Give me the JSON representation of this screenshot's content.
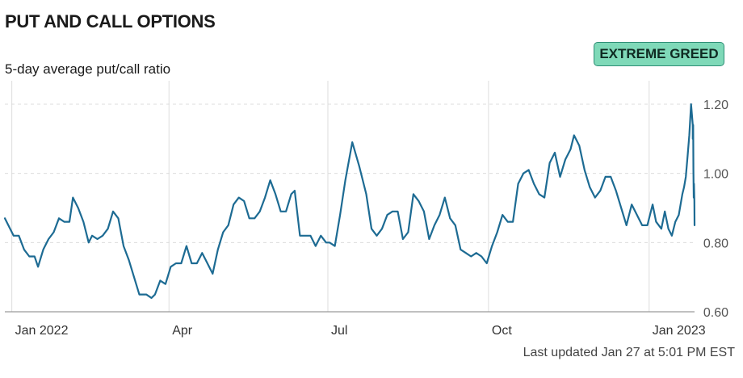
{
  "header": {
    "title": "PUT AND CALL OPTIONS",
    "subtitle": "5-day average put/call ratio",
    "badge": "EXTREME GREED",
    "updated": "Last updated Jan 27 at 5:01 PM EST"
  },
  "colors": {
    "line": "#1d6b93",
    "badge_bg": "#7fd9b8",
    "badge_border": "#2f8f76",
    "grid": "#dcdcdc",
    "baseline": "#9a9a9a"
  },
  "chart_data": {
    "type": "line",
    "title": "PUT AND CALL OPTIONS",
    "subtitle": "5-day average put/call ratio",
    "ylim": [
      0.6,
      1.25
    ],
    "yticks": [
      0.6,
      0.8,
      1.0,
      1.2
    ],
    "ytick_labels": [
      "0.60",
      "0.80",
      "1.00",
      "1.20"
    ],
    "xlim": [
      "2021-12-28",
      "2023-01-27"
    ],
    "xticks": [
      {
        "date": "2022-01-01",
        "label": "Jan 2022"
      },
      {
        "date": "2022-04-01",
        "label": "Apr"
      },
      {
        "date": "2022-07-01",
        "label": "Jul"
      },
      {
        "date": "2022-10-01",
        "label": "Oct"
      },
      {
        "date": "2023-01-01",
        "label": "Jan 2023"
      }
    ],
    "grid": "vertical at x ticks, dashed horizontal at y ticks",
    "series": [
      {
        "values": [
          [
            "2021-12-28",
            0.87
          ],
          [
            "2022-01-02",
            0.82
          ],
          [
            "2022-01-05",
            0.82
          ],
          [
            "2022-01-08",
            0.78
          ],
          [
            "2022-01-11",
            0.76
          ],
          [
            "2022-01-14",
            0.76
          ],
          [
            "2022-01-16",
            0.73
          ],
          [
            "2022-01-19",
            0.78
          ],
          [
            "2022-01-22",
            0.81
          ],
          [
            "2022-01-25",
            0.83
          ],
          [
            "2022-01-28",
            0.87
          ],
          [
            "2022-01-31",
            0.86
          ],
          [
            "2022-02-03",
            0.86
          ],
          [
            "2022-02-05",
            0.93
          ],
          [
            "2022-02-08",
            0.9
          ],
          [
            "2022-02-11",
            0.86
          ],
          [
            "2022-02-14",
            0.8
          ],
          [
            "2022-02-16",
            0.82
          ],
          [
            "2022-02-19",
            0.81
          ],
          [
            "2022-02-22",
            0.82
          ],
          [
            "2022-02-25",
            0.84
          ],
          [
            "2022-02-28",
            0.89
          ],
          [
            "2022-03-03",
            0.87
          ],
          [
            "2022-03-06",
            0.79
          ],
          [
            "2022-03-09",
            0.75
          ],
          [
            "2022-03-12",
            0.7
          ],
          [
            "2022-03-15",
            0.65
          ],
          [
            "2022-03-19",
            0.65
          ],
          [
            "2022-03-22",
            0.64
          ],
          [
            "2022-03-24",
            0.65
          ],
          [
            "2022-03-27",
            0.69
          ],
          [
            "2022-03-30",
            0.68
          ],
          [
            "2022-04-02",
            0.73
          ],
          [
            "2022-04-05",
            0.74
          ],
          [
            "2022-04-08",
            0.74
          ],
          [
            "2022-04-11",
            0.79
          ],
          [
            "2022-04-14",
            0.74
          ],
          [
            "2022-04-17",
            0.74
          ],
          [
            "2022-04-20",
            0.77
          ],
          [
            "2022-04-23",
            0.74
          ],
          [
            "2022-04-26",
            0.71
          ],
          [
            "2022-04-29",
            0.78
          ],
          [
            "2022-05-02",
            0.83
          ],
          [
            "2022-05-05",
            0.85
          ],
          [
            "2022-05-08",
            0.91
          ],
          [
            "2022-05-11",
            0.93
          ],
          [
            "2022-05-14",
            0.92
          ],
          [
            "2022-05-17",
            0.87
          ],
          [
            "2022-05-20",
            0.87
          ],
          [
            "2022-05-23",
            0.89
          ],
          [
            "2022-05-26",
            0.93
          ],
          [
            "2022-05-29",
            0.98
          ],
          [
            "2022-06-01",
            0.94
          ],
          [
            "2022-06-04",
            0.89
          ],
          [
            "2022-06-07",
            0.89
          ],
          [
            "2022-06-10",
            0.94
          ],
          [
            "2022-06-12",
            0.95
          ],
          [
            "2022-06-15",
            0.82
          ],
          [
            "2022-06-18",
            0.82
          ],
          [
            "2022-06-21",
            0.82
          ],
          [
            "2022-06-24",
            0.79
          ],
          [
            "2022-06-27",
            0.82
          ],
          [
            "2022-06-30",
            0.8
          ],
          [
            "2022-07-02",
            0.8
          ],
          [
            "2022-07-05",
            0.79
          ],
          [
            "2022-07-08",
            0.88
          ],
          [
            "2022-07-11",
            0.98
          ],
          [
            "2022-07-15",
            1.09
          ],
          [
            "2022-07-19",
            1.02
          ],
          [
            "2022-07-23",
            0.94
          ],
          [
            "2022-07-26",
            0.84
          ],
          [
            "2022-07-29",
            0.82
          ],
          [
            "2022-08-01",
            0.84
          ],
          [
            "2022-08-04",
            0.88
          ],
          [
            "2022-08-07",
            0.89
          ],
          [
            "2022-08-10",
            0.89
          ],
          [
            "2022-08-13",
            0.81
          ],
          [
            "2022-08-16",
            0.83
          ],
          [
            "2022-08-19",
            0.94
          ],
          [
            "2022-08-22",
            0.92
          ],
          [
            "2022-08-25",
            0.89
          ],
          [
            "2022-08-28",
            0.81
          ],
          [
            "2022-08-31",
            0.85
          ],
          [
            "2022-09-03",
            0.88
          ],
          [
            "2022-09-06",
            0.93
          ],
          [
            "2022-09-09",
            0.87
          ],
          [
            "2022-09-12",
            0.85
          ],
          [
            "2022-09-15",
            0.78
          ],
          [
            "2022-09-18",
            0.77
          ],
          [
            "2022-09-21",
            0.76
          ],
          [
            "2022-09-24",
            0.77
          ],
          [
            "2022-09-27",
            0.76
          ],
          [
            "2022-09-30",
            0.74
          ],
          [
            "2022-10-03",
            0.79
          ],
          [
            "2022-10-06",
            0.83
          ],
          [
            "2022-10-09",
            0.88
          ],
          [
            "2022-10-12",
            0.86
          ],
          [
            "2022-10-15",
            0.86
          ],
          [
            "2022-10-18",
            0.97
          ],
          [
            "2022-10-21",
            1.0
          ],
          [
            "2022-10-24",
            1.01
          ],
          [
            "2022-10-27",
            0.97
          ],
          [
            "2022-10-30",
            0.94
          ],
          [
            "2022-11-02",
            0.93
          ],
          [
            "2022-11-05",
            1.03
          ],
          [
            "2022-11-08",
            1.06
          ],
          [
            "2022-11-11",
            0.99
          ],
          [
            "2022-11-14",
            1.04
          ],
          [
            "2022-11-17",
            1.07
          ],
          [
            "2022-11-19",
            1.11
          ],
          [
            "2022-11-22",
            1.08
          ],
          [
            "2022-11-25",
            1.01
          ],
          [
            "2022-11-28",
            0.96
          ],
          [
            "2022-12-01",
            0.93
          ],
          [
            "2022-12-04",
            0.95
          ],
          [
            "2022-12-07",
            0.99
          ],
          [
            "2022-12-10",
            0.99
          ],
          [
            "2022-12-13",
            0.95
          ],
          [
            "2022-12-16",
            0.9
          ],
          [
            "2022-12-19",
            0.85
          ],
          [
            "2022-12-22",
            0.91
          ],
          [
            "2022-12-25",
            0.88
          ],
          [
            "2022-12-28",
            0.85
          ],
          [
            "2022-12-31",
            0.85
          ],
          [
            "2023-01-03",
            0.91
          ],
          [
            "2023-01-05",
            0.86
          ],
          [
            "2023-01-08",
            0.84
          ],
          [
            "2023-01-10",
            0.89
          ],
          [
            "2023-01-12",
            0.84
          ],
          [
            "2023-01-14",
            0.82
          ],
          [
            "2023-01-16",
            0.86
          ],
          [
            "2023-01-18",
            0.88
          ],
          [
            "2023-01-19",
            0.91
          ],
          [
            "2023-01-20",
            0.94
          ],
          [
            "2023-01-21",
            0.96
          ],
          [
            "2023-01-22",
            0.99
          ],
          [
            "2023-01-23",
            1.05
          ],
          [
            "2023-01-24",
            1.11
          ],
          [
            "2023-01-25",
            1.2
          ],
          [
            "2023-01-26",
            1.14
          ],
          [
            "2023-01-26",
            1.1
          ],
          [
            "2023-01-27",
            1.1
          ],
          [
            "2023-01-27",
            1.14
          ],
          [
            "2023-01-27",
            1.01
          ],
          [
            "2023-01-27",
            0.97
          ],
          [
            "2023-01-27",
            0.93
          ],
          [
            "2023-01-27",
            0.97
          ],
          [
            "2023-01-27",
            0.95
          ],
          [
            "2023-01-27",
            0.92
          ],
          [
            "2023-01-27",
            0.85
          ]
        ]
      }
    ]
  }
}
